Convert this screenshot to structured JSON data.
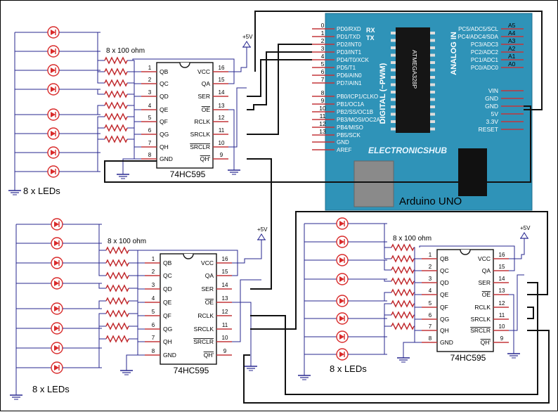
{
  "colors": {
    "led": "#d92b2b",
    "resistor": "#c0282c",
    "blue_wire": "#27278f",
    "chip_outline": "#111111",
    "board": "#2f93b8",
    "board_dark": "#1f6f8f",
    "silk": "#ffffff",
    "pin_lead": "#c4363a",
    "black_wire": "#111111"
  },
  "resistor_label": "8 x 100 ohm",
  "led_label": "8 x LEDs",
  "vcc_label": "+5V",
  "chip": {
    "name": "74HC595",
    "left_pins": [
      {
        "num": "1",
        "label": "QB"
      },
      {
        "num": "2",
        "label": "QC"
      },
      {
        "num": "3",
        "label": "QD"
      },
      {
        "num": "4",
        "label": "QE"
      },
      {
        "num": "5",
        "label": "QF"
      },
      {
        "num": "6",
        "label": "QG"
      },
      {
        "num": "7",
        "label": "QH"
      },
      {
        "num": "8",
        "label": "GND"
      }
    ],
    "right_pins": [
      {
        "num": "16",
        "label": "VCC"
      },
      {
        "num": "15",
        "label": "QA"
      },
      {
        "num": "14",
        "label": "SER"
      },
      {
        "num": "13",
        "label": "OE"
      },
      {
        "num": "12",
        "label": "RCLK"
      },
      {
        "num": "11",
        "label": "SRCLK"
      },
      {
        "num": "10",
        "label": "SRCLR"
      },
      {
        "num": "9",
        "label": "QH'"
      }
    ]
  },
  "arduino": {
    "caption": "Arduino UNO",
    "brand": "ELECTRONICSHUB",
    "mcu": "ATMEGA328P",
    "digital_label": "DIGITAL (~PWM)",
    "analog_label": "ANALOG IN",
    "rx_label": "RX",
    "tx_label": "TX",
    "left_pins": [
      {
        "num": "0",
        "label": "PD0/RXD"
      },
      {
        "num": "1",
        "label": "PD1/TXD"
      },
      {
        "num": "2",
        "label": "PD2/INT0"
      },
      {
        "num": "3",
        "label": "PD3/INT1"
      },
      {
        "num": "4",
        "label": "PD4/T0/XCK"
      },
      {
        "num": "5",
        "label": "PD5/T1"
      },
      {
        "num": "6",
        "label": "PD6/AIN0"
      },
      {
        "num": "7",
        "label": "PD7/AIN1"
      },
      {
        "num": "8",
        "label": "PB0/ICP1/CLKO"
      },
      {
        "num": "9",
        "label": "PB1/OC1A"
      },
      {
        "num": "10",
        "label": "PB2/SS/OC1B"
      },
      {
        "num": "11",
        "label": "PB3/MOSI/OC2A"
      },
      {
        "num": "12",
        "label": "PB4/MISO"
      },
      {
        "num": "13",
        "label": "PB5/SCK"
      },
      {
        "num": "",
        "label": "GND"
      },
      {
        "num": "",
        "label": "AREF"
      }
    ],
    "analog_pins": [
      {
        "num": "A5",
        "label": "PC5/ADC5/SCL"
      },
      {
        "num": "A4",
        "label": "PC4/ADC4/SDA"
      },
      {
        "num": "A3",
        "label": "PC3/ADC3"
      },
      {
        "num": "A2",
        "label": "PC2/ADC2"
      },
      {
        "num": "A1",
        "label": "PC1/ADC1"
      },
      {
        "num": "A0",
        "label": "PC0/ADC0"
      }
    ],
    "power_pins": [
      "VIN",
      "GND",
      "GND",
      "5V",
      "3.3V",
      "RESET"
    ]
  }
}
